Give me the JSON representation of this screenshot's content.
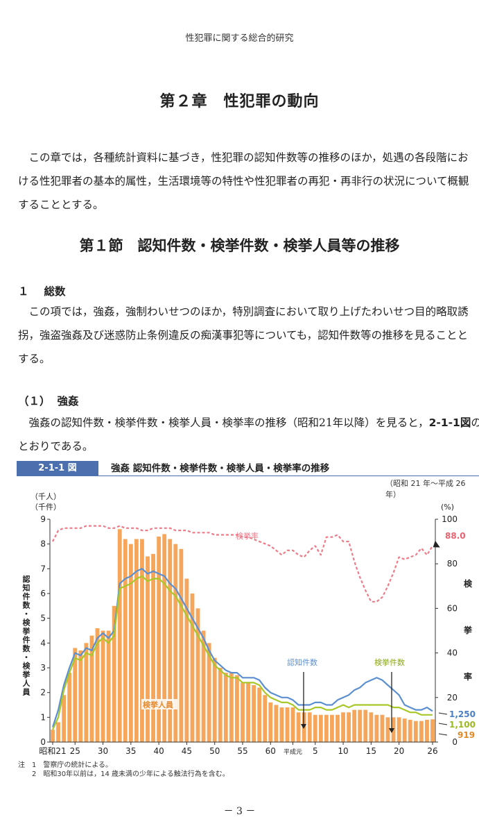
{
  "header": {
    "running_title": "性犯罪に関する総合的研究"
  },
  "chapter_title": "第２章　性犯罪の動向",
  "intro_lines": [
    "　この章では，各種統計資料に基づき，性犯罪の認知件数等の推移のほか，処遇の各段階にお",
    "ける性犯罪者の基本的属性，生活環境等の特性や性犯罪者の再犯・再非行の状況について概観",
    "することとする。"
  ],
  "section_title": "第１節　認知件数・検挙件数・検挙人員等の推移",
  "subsection": {
    "number": "１",
    "title": "総数"
  },
  "subsection_lines": [
    "　この項では，強姦，強制わいせつのほか，特別調査において取り上げたわいせつ目的略取誘",
    "拐，強盗強姦及び迷惑防止条例違反の痴漢事犯等についても，認知件数等の推移を見ることと",
    "する。"
  ],
  "item": {
    "number": "（１）",
    "title": "強姦"
  },
  "item_lines": {
    "line1_before": "　強姦の認知件数・検挙件数・検挙人員・検挙率の推移（昭和21年以降）を見ると，",
    "line1_ref": "2-1-1図",
    "line1_after": "の",
    "line2": "とおりである。"
  },
  "figure": {
    "badge": "2-1-1 図",
    "title": "強姦 認知件数・検挙件数・検挙人員・検挙率の推移",
    "period": "（昭和 21 年～平成 26 年）",
    "notes": [
      "注　1　警察庁の統計による。",
      "　　2　昭和30年以前は，14 歳未満の少年による触法行為を含む。"
    ]
  },
  "chart_data": {
    "type": "bar",
    "left_unit_1": "（千人）",
    "left_unit_2": "（千件）",
    "left_axis_label": [
      "認",
      "知",
      "件",
      "数",
      "・",
      "検",
      "挙",
      "件",
      "数",
      "・",
      "検",
      "挙",
      "人",
      "員"
    ],
    "right_unit": "(%)",
    "right_axis_label": [
      "検",
      "挙",
      "率"
    ],
    "y_left_range": [
      0,
      9
    ],
    "y_left_ticks": [
      "0",
      "1",
      "2",
      "3",
      "4",
      "5",
      "6",
      "7",
      "8",
      "9"
    ],
    "y_right_range": [
      0,
      100
    ],
    "y_right_ticks": [
      "0",
      "20",
      "40",
      "60",
      "80",
      "100"
    ],
    "x_tick_labels": [
      {
        "label": "昭和21",
        "year": 1946
      },
      {
        "label": "25",
        "year": 1950
      },
      {
        "label": "30",
        "year": 1955
      },
      {
        "label": "35",
        "year": 1960
      },
      {
        "label": "40",
        "year": 1965
      },
      {
        "label": "45",
        "year": 1970
      },
      {
        "label": "50",
        "year": 1975
      },
      {
        "label": "55",
        "year": 1980
      },
      {
        "label": "60",
        "year": 1985
      },
      {
        "label": "平成元",
        "year": 1989
      },
      {
        "label": "5",
        "year": 1993
      },
      {
        "label": "10",
        "year": 1998
      },
      {
        "label": "15",
        "year": 2003
      },
      {
        "label": "20",
        "year": 2008
      },
      {
        "label": "26",
        "year": 2014
      }
    ],
    "years": [
      1946,
      1947,
      1948,
      1949,
      1950,
      1951,
      1952,
      1953,
      1954,
      1955,
      1956,
      1957,
      1958,
      1959,
      1960,
      1961,
      1962,
      1963,
      1964,
      1965,
      1966,
      1967,
      1968,
      1969,
      1970,
      1971,
      1972,
      1973,
      1974,
      1975,
      1976,
      1977,
      1978,
      1979,
      1980,
      1981,
      1982,
      1983,
      1984,
      1985,
      1986,
      1987,
      1988,
      1989,
      1990,
      1991,
      1992,
      1993,
      1994,
      1995,
      1996,
      1997,
      1998,
      1999,
      2000,
      2001,
      2002,
      2003,
      2004,
      2005,
      2006,
      2007,
      2008,
      2009,
      2010,
      2011,
      2012,
      2013,
      2014
    ],
    "series": [
      {
        "name": "認知件数",
        "color": "#5b8fd0",
        "values": [
          0.6,
          1.3,
          2.3,
          3.0,
          3.6,
          3.5,
          3.8,
          3.7,
          4.2,
          4.4,
          4.2,
          4.5,
          6.4,
          6.6,
          6.7,
          6.9,
          7.0,
          6.8,
          6.9,
          6.8,
          6.7,
          6.4,
          6.2,
          5.8,
          5.4,
          5.0,
          4.6,
          4.2,
          3.7,
          3.3,
          3.1,
          2.9,
          2.8,
          2.8,
          2.6,
          2.6,
          2.6,
          2.5,
          2.2,
          2.0,
          1.9,
          1.8,
          1.8,
          1.7,
          1.5,
          1.5,
          1.5,
          1.6,
          1.6,
          1.5,
          1.5,
          1.7,
          1.8,
          1.9,
          2.1,
          2.2,
          2.4,
          2.5,
          2.6,
          2.5,
          2.3,
          2.1,
          1.9,
          1.5,
          1.4,
          1.3,
          1.3,
          1.4,
          1.25
        ]
      },
      {
        "name": "検挙件数",
        "color": "#a8c828",
        "values": [
          0.5,
          1.0,
          2.1,
          2.8,
          3.4,
          3.3,
          3.6,
          3.5,
          4.0,
          4.2,
          4.0,
          4.3,
          6.2,
          6.3,
          6.4,
          6.6,
          6.7,
          6.5,
          6.6,
          6.6,
          6.4,
          6.1,
          5.9,
          5.5,
          5.1,
          4.7,
          4.3,
          3.9,
          3.5,
          3.1,
          2.9,
          2.7,
          2.6,
          2.6,
          2.4,
          2.4,
          2.4,
          2.3,
          2.0,
          1.8,
          1.7,
          1.6,
          1.6,
          1.5,
          1.3,
          1.3,
          1.3,
          1.4,
          1.4,
          1.3,
          1.3,
          1.4,
          1.5,
          1.4,
          1.5,
          1.5,
          1.5,
          1.5,
          1.5,
          1.5,
          1.5,
          1.4,
          1.4,
          1.3,
          1.2,
          1.2,
          1.1,
          1.1,
          1.1
        ]
      },
      {
        "name": "検挙人員",
        "color": "#f5a65b",
        "values": [
          0.5,
          0.8,
          1.9,
          2.8,
          3.8,
          3.7,
          4.0,
          4.3,
          4.6,
          4.5,
          4.5,
          5.5,
          8.6,
          8.2,
          8.0,
          8.2,
          8.2,
          7.5,
          7.6,
          8.3,
          8.4,
          8.2,
          8.0,
          7.8,
          6.6,
          6.0,
          5.4,
          4.5,
          4.0,
          3.4,
          3.0,
          2.8,
          2.8,
          2.7,
          2.4,
          2.4,
          2.3,
          2.2,
          1.9,
          1.6,
          1.5,
          1.4,
          1.4,
          1.4,
          1.2,
          1.2,
          1.2,
          1.1,
          1.1,
          1.1,
          1.1,
          1.1,
          1.2,
          1.2,
          1.3,
          1.3,
          1.3,
          1.2,
          1.1,
          1.1,
          1.0,
          1.0,
          1.0,
          0.95,
          0.9,
          0.85,
          0.85,
          0.9,
          0.919
        ]
      }
    ],
    "rate_series": {
      "name": "検挙率",
      "color": "#ee7a88",
      "values": [
        90,
        95,
        96,
        96,
        96,
        96,
        97,
        97,
        97,
        97,
        96,
        96,
        97,
        96,
        96,
        96,
        95,
        95,
        96,
        96,
        96,
        96,
        95,
        95,
        95,
        94,
        94,
        94,
        94,
        93,
        93,
        93,
        93,
        93,
        92,
        92,
        91,
        90,
        89,
        88,
        86,
        84,
        86,
        86,
        84,
        83,
        86,
        88,
        84,
        92,
        92,
        93,
        90,
        90,
        81,
        74,
        68,
        63,
        63,
        65,
        70,
        76,
        83,
        82,
        83,
        84,
        87,
        84,
        88
      ]
    },
    "annotations": {
      "rate_label": "検挙率",
      "recognized_label": "認知件数",
      "cleared_label": "検挙件数",
      "arrested_label": "検挙人員",
      "end_rate": "88.0",
      "end_recognized": "1,250",
      "end_cleared": "1,100",
      "end_arrested": "919"
    },
    "grid": false,
    "legend": "inline labels"
  },
  "footer": {
    "page_number": "－ 3 －"
  }
}
